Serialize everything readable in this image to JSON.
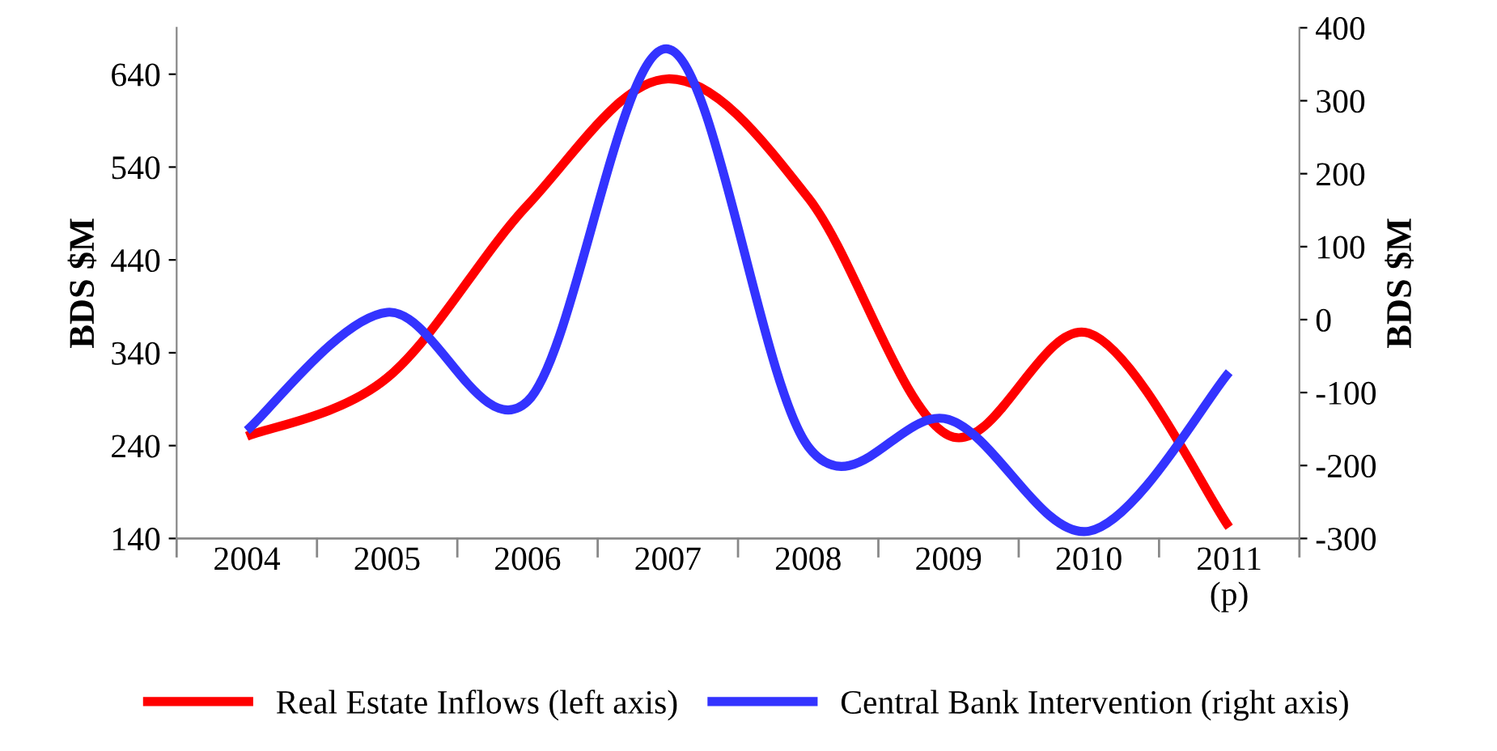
{
  "chart_data": {
    "type": "line",
    "categories": [
      "2004",
      "2005",
      "2006",
      "2007",
      "2008",
      "2009",
      "2010",
      "2011\n(p)"
    ],
    "series": [
      {
        "name": "Real Estate Inflows (left axis)",
        "color": "#ff0000",
        "values": [
          250,
          313,
          499,
          635,
          507,
          251,
          361,
          152
        ]
      },
      {
        "name": "Central Bank Intervention (right axis)",
        "color": "#3333ff",
        "axis": "y2",
        "values": [
          -152,
          10,
          -112,
          371,
          -174,
          -137,
          -290,
          -72
        ]
      }
    ],
    "ylabel": "BDS $M",
    "y2label": "BDS $M",
    "ylim": [
      140,
      690
    ],
    "yticks": [
      140,
      240,
      340,
      440,
      540,
      640
    ],
    "y2lim": [
      -300,
      400
    ],
    "y2ticks": [
      -300,
      -200,
      -100,
      0,
      100,
      200,
      300,
      400
    ],
    "grid": false,
    "legend": "bottom",
    "marker": "none",
    "line_style": "solid"
  }
}
